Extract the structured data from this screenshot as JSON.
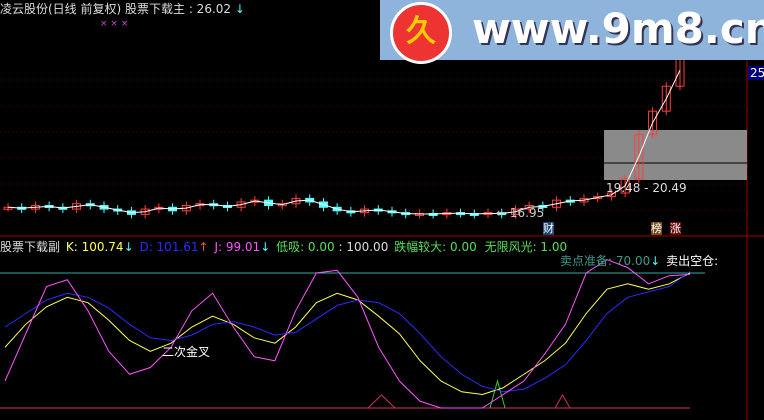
{
  "header": {
    "title": "凌云股份(日线 前复权) 股票下载主",
    "value": ": 26.02",
    "arrow": "↓",
    "markers": "× × ×"
  },
  "watermark": {
    "text": "www.9m8.cn",
    "logo": "久"
  },
  "price_axis": {
    "top_label": "25"
  },
  "annotations": {
    "low": "← 16.95",
    "range": "19.48 - 20.49",
    "cai": "财",
    "bang": "榜",
    "zhang": "涨"
  },
  "lower": {
    "name": "股票下载副",
    "k": "K: 100.74",
    "k_arrow": "↓",
    "d": "D: 101.61",
    "d_arrow": "↑",
    "j": "J: 99.01",
    "j_arrow": "↓",
    "dixi": "低吸: 0.00",
    "dixi2": ": 100.00",
    "diefu": "跌幅较大: 0.00",
    "wuxian": "无限风光: 1.00",
    "maidian": "卖点准备: 70.00",
    "maidian_arrow": "↓",
    "maichu": "卖出空仓: ",
    "label_cross": "二次金叉"
  },
  "colors": {
    "up": "#ff3c3c",
    "down": "#54ffff",
    "k": "#ffff54",
    "d": "#2b2bff",
    "j": "#ff54ff",
    "grid": "#a00000"
  },
  "chart_data": [
    {
      "type": "candlestick",
      "closes": [
        17.4,
        17.3,
        17.5,
        17.4,
        17.3,
        17.6,
        17.5,
        17.3,
        17.2,
        17.0,
        17.3,
        17.4,
        17.2,
        17.5,
        17.6,
        17.5,
        17.4,
        17.7,
        17.8,
        17.5,
        17.6,
        17.9,
        17.7,
        17.4,
        17.2,
        17.1,
        17.3,
        17.2,
        17.1,
        17.0,
        17.05,
        17.0,
        17.1,
        17.05,
        17.0,
        17.1,
        17.0,
        17.3,
        17.5,
        17.4,
        17.8,
        17.7,
        17.9,
        18.0,
        18.2,
        19.0,
        21.5,
        22.8,
        24.2,
        26.0
      ],
      "ylim": [
        15.5,
        25.5
      ]
    },
    {
      "type": "line",
      "series": [
        {
          "name": "K",
          "values": [
            45,
            62,
            75,
            82,
            78,
            65,
            50,
            42,
            48,
            60,
            68,
            62,
            52,
            48,
            60,
            78,
            85,
            80,
            68,
            55,
            35,
            20,
            12,
            10,
            15,
            25,
            35,
            48,
            70,
            88,
            92,
            88,
            92,
            100
          ]
        },
        {
          "name": "D",
          "values": [
            60,
            70,
            80,
            85,
            82,
            74,
            62,
            52,
            50,
            54,
            62,
            64,
            60,
            54,
            56,
            66,
            76,
            80,
            78,
            70,
            55,
            38,
            25,
            16,
            12,
            14,
            22,
            32,
            50,
            70,
            82,
            86,
            90,
            101
          ]
        },
        {
          "name": "J",
          "values": [
            20,
            55,
            90,
            95,
            72,
            42,
            25,
            30,
            45,
            72,
            85,
            60,
            38,
            35,
            72,
            100,
            102,
            82,
            45,
            20,
            5,
            0,
            0,
            0,
            10,
            20,
            40,
            62,
            100,
            110,
            104,
            92,
            98,
            99
          ]
        }
      ],
      "ylim": [
        0,
        100
      ]
    }
  ]
}
